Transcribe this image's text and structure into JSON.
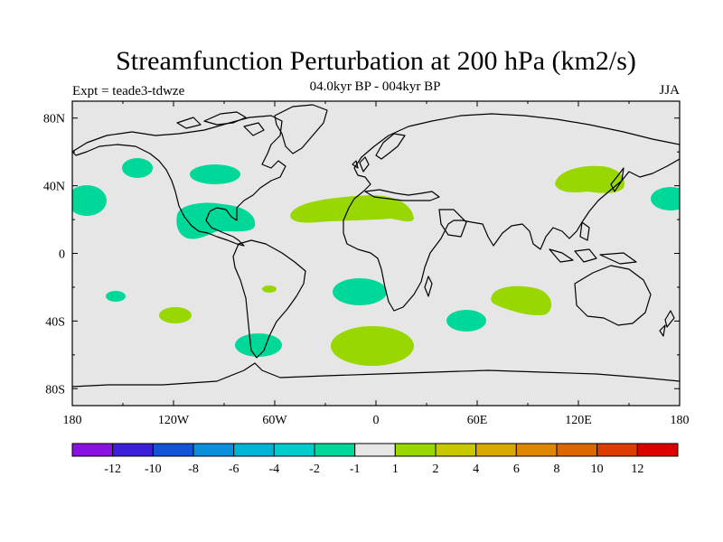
{
  "title": "Streamfunction Perturbation at 200 hPa (km2/s)",
  "subtitle": "04.0kyr BP - 004kyr BP",
  "experiment": "Expt = teade3-tdwze",
  "season": "JJA",
  "map": {
    "ocean_color": "#e6e6e6",
    "lon_ticks": [
      "180",
      "120W",
      "60W",
      "0",
      "60E",
      "120E",
      "180"
    ],
    "lat_ticks": [
      "80N",
      "40N",
      "0",
      "40S",
      "80S"
    ]
  },
  "colorbar": {
    "colors": [
      "#8a12e0",
      "#3c1fd8",
      "#1454d4",
      "#0a8fdb",
      "#00b4d6",
      "#00cccc",
      "#00d89a",
      "#e6e6e6",
      "#98d800",
      "#c8c800",
      "#d8aa00",
      "#dc8800",
      "#dc6600",
      "#dc3c00",
      "#dc0000"
    ],
    "labels": [
      "-12",
      "-10",
      "-8",
      "-6",
      "-4",
      "-2",
      "-1",
      "1",
      "2",
      "4",
      "6",
      "8",
      "10",
      "12"
    ]
  },
  "anomalies": [
    {
      "name": "anomaly-pacific-north-east",
      "color": "#00d89a"
    },
    {
      "name": "anomaly-north-america",
      "color": "#00d89a"
    },
    {
      "name": "anomaly-north-pacific-west",
      "color": "#00d89a"
    },
    {
      "name": "anomaly-caribbean",
      "color": "#00d89a"
    },
    {
      "name": "anomaly-north-africa",
      "color": "#98d800"
    },
    {
      "name": "anomaly-east-asia",
      "color": "#98d800"
    },
    {
      "name": "anomaly-west-pacific-dateline",
      "color": "#00d89a"
    },
    {
      "name": "anomaly-south-pacific-small",
      "color": "#00d89a"
    },
    {
      "name": "anomaly-south-east-pacific",
      "color": "#98d800"
    },
    {
      "name": "anomaly-south-brazil",
      "color": "#98d800"
    },
    {
      "name": "anomaly-south-atlantic",
      "color": "#00d89a"
    },
    {
      "name": "anomaly-south-atlantic-deep",
      "color": "#98d800"
    },
    {
      "name": "anomaly-indian-ocean-west",
      "color": "#00d89a"
    },
    {
      "name": "anomaly-indian-ocean-east",
      "color": "#98d800"
    },
    {
      "name": "anomaly-drake-passage",
      "color": "#00d89a"
    }
  ]
}
